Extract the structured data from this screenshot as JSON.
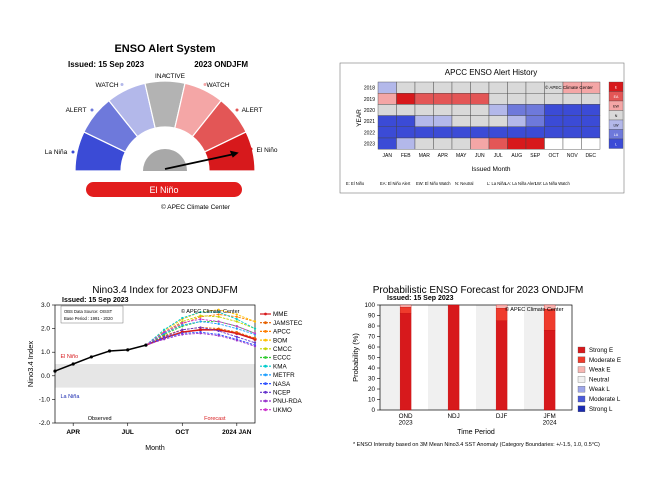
{
  "colors": {
    "strong_el_nino": "#d7191c",
    "el_nino_alert": "#e35656",
    "el_nino_watch": "#f4a6a6",
    "inactive": "#b3b3b3",
    "la_nina_watch": "#b3b8ea",
    "la_nina_alert": "#6e79db",
    "la_nina": "#3b4bd6",
    "neutral_cell": "#d9d9d9",
    "title_bar": "#e21d1d"
  },
  "panel1": {
    "title": "ENSO Alert System",
    "issued": "Issued: 15 Sep 2023",
    "period": "2023 ONDJFM",
    "labels": {
      "inactive": "INACTIVE",
      "watch_left": "WATCH",
      "watch_right": "WATCH",
      "alert_left": "ALERT",
      "alert_right": "ALERT",
      "la_nina": "La Niña",
      "el_nino": "El Niño"
    },
    "status": "El Niño",
    "credit": "© APEC Climate Center",
    "needle_state": "El Niño"
  },
  "panel2": {
    "title": "APCC ENSO Alert History",
    "ylabel": "YEAR",
    "xlabel": "Issued Month",
    "credit": "© APEC Climate Center",
    "legend_footer": [
      "E: El Niño",
      "EA: El Niño Alert",
      "EW: El Niño Watch",
      "N: Neutral",
      "L: La Niña",
      "LA: La Niña Alert",
      "LW: La Niña Watch"
    ]
  },
  "panel3": {
    "title": "Nino3.4 Index for 2023 ONDJFM",
    "issued": "Issued: 15 Sep 2023",
    "credit": "© APEC Climate Center",
    "info_line1": "OBS Data Source: OISST",
    "info_line2": "Base Period : 1991 - 2020",
    "el_nino_label": "El Niño",
    "la_nina_label": "La Niña",
    "observed_label": "Observed",
    "forecast_label": "Forecast"
  },
  "panel4": {
    "title": "Probabilistic ENSO Forecast for 2023 ONDJFM",
    "issued": "Issued: 15 Sep 2023",
    "credit": "© APEC Climate Center"
  },
  "footnote": "* ENSO Intensity based on 3M Mean Nino3.4 SST Anomaly (Category Boundaries: +/-1.5, 1.0, 0.5°C)",
  "chart_data": [
    {
      "type": "heatmap",
      "title": "APCC ENSO Alert History",
      "xlabel": "Issued Month",
      "ylabel": "YEAR",
      "x": [
        "JAN",
        "FEB",
        "MAR",
        "APR",
        "MAY",
        "JUN",
        "JUL",
        "AUG",
        "SEP",
        "OCT",
        "NOV",
        "DEC"
      ],
      "y": [
        "2018",
        "2019",
        "2020",
        "2021",
        "2022",
        "2023"
      ],
      "values": [
        [
          "LW",
          "N",
          "N",
          "N",
          "N",
          "N",
          "N",
          "N",
          "N",
          "N",
          "EW",
          "EW"
        ],
        [
          "EW",
          "E",
          "EA",
          "EA",
          "EA",
          "EA",
          "N",
          "N",
          "N",
          "N",
          "N",
          "N"
        ],
        [
          "N",
          "N",
          "N",
          "N",
          "N",
          "N",
          "LW",
          "LA",
          "LA",
          "L",
          "L",
          "L"
        ],
        [
          "L",
          "L",
          "LW",
          "LW",
          "N",
          "N",
          "N",
          "LW",
          "LA",
          "L",
          "L",
          "L"
        ],
        [
          "L",
          "L",
          "L",
          "L",
          "L",
          "L",
          "L",
          "L",
          "L",
          "L",
          "L",
          "L"
        ],
        [
          "L",
          "LW",
          "N",
          "N",
          "N",
          "EW",
          "EA",
          "E",
          "E",
          "",
          "",
          ""
        ]
      ],
      "legend": [
        "E",
        "EA",
        "EW",
        "N",
        "LW",
        "LA",
        "L"
      ]
    },
    {
      "type": "line",
      "title": "Nino3.4 Index for 2023 ONDJFM",
      "xlabel": "Month",
      "ylabel": "Nino3.4 Index",
      "ylim": [
        -2,
        3
      ],
      "yticks": [
        "-2.0",
        "-1.0",
        "0.0",
        "1.0",
        "2.0",
        "3.0"
      ],
      "x_ticks": [
        "APR",
        "JUL",
        "OCT",
        "2024 JAN"
      ],
      "x_tick_positions": [
        4,
        7,
        10,
        13
      ],
      "xlim": [
        3,
        14
      ],
      "observed": {
        "x": [
          3,
          4,
          5,
          6,
          7,
          8
        ],
        "values": [
          0.2,
          0.5,
          0.8,
          1.05,
          1.1,
          1.3
        ]
      },
      "forecast_x": [
        8,
        9,
        10,
        11,
        12,
        13,
        14
      ],
      "series": [
        {
          "name": "MME",
          "color": "#d7191c",
          "values": [
            1.3,
            1.6,
            1.85,
            1.95,
            1.95,
            1.8,
            1.55
          ]
        },
        {
          "name": "JAMSTEC",
          "color": "#e66101",
          "values": [
            1.3,
            1.7,
            1.95,
            2.05,
            2.0,
            1.85,
            1.6
          ]
        },
        {
          "name": "APCC",
          "color": "#ff7f00",
          "values": [
            1.3,
            1.8,
            2.2,
            2.5,
            2.6,
            2.5,
            2.3
          ]
        },
        {
          "name": "BOM",
          "color": "#ffc000",
          "values": [
            1.3,
            1.9,
            2.4,
            2.7,
            2.8,
            2.6,
            2.3
          ]
        },
        {
          "name": "CMCC",
          "color": "#c8d400",
          "values": [
            1.3,
            1.85,
            2.3,
            2.55,
            2.5,
            2.3,
            2.0
          ]
        },
        {
          "name": "ECCC",
          "color": "#33cc33",
          "values": [
            1.3,
            1.75,
            2.1,
            2.3,
            2.3,
            2.1,
            1.8
          ]
        },
        {
          "name": "KMA",
          "color": "#00cccc",
          "values": [
            1.3,
            1.95,
            2.45,
            2.7,
            2.7,
            2.4,
            2.0
          ]
        },
        {
          "name": "METFR",
          "color": "#1f9fff",
          "values": [
            1.3,
            1.8,
            2.15,
            2.3,
            2.2,
            2.0,
            1.75
          ]
        },
        {
          "name": "NASA",
          "color": "#3355ff",
          "values": [
            1.3,
            1.6,
            1.8,
            1.85,
            1.75,
            1.55,
            1.3
          ]
        },
        {
          "name": "NCEP",
          "color": "#6633cc",
          "values": [
            1.3,
            1.65,
            1.95,
            2.05,
            1.9,
            1.65,
            1.4
          ]
        },
        {
          "name": "PNU-RDA",
          "color": "#9933cc",
          "values": [
            1.3,
            1.55,
            1.75,
            1.8,
            1.7,
            1.5,
            1.25
          ]
        },
        {
          "name": "UKMO",
          "color": "#cc33cc",
          "values": [
            1.3,
            1.85,
            2.25,
            2.4,
            2.3,
            2.1,
            1.8
          ]
        }
      ],
      "el_nino_threshold": 0.5,
      "la_nina_threshold": -0.5
    },
    {
      "type": "bar",
      "title": "Probabilistic ENSO Forecast for 2023 ONDJFM",
      "xlabel": "Time Period",
      "ylabel": "Probability (%)",
      "ylim": [
        0,
        100
      ],
      "yticks": [
        "0",
        "10",
        "20",
        "30",
        "40",
        "50",
        "60",
        "70",
        "80",
        "90",
        "100"
      ],
      "categories": [
        "OND\n2023",
        "NDJ",
        "DJF",
        "JFM\n2024"
      ],
      "category_labels": [
        [
          "OND",
          "2023"
        ],
        [
          "NDJ"
        ],
        [
          "DJF"
        ],
        [
          "JFM",
          "2024"
        ]
      ],
      "series": [
        {
          "name": "Strong E",
          "color": "#d7191c",
          "values": [
            92,
            100,
            85,
            76
          ]
        },
        {
          "name": "Moderate E",
          "color": "#ef3b2c",
          "values": [
            6,
            0,
            12,
            20
          ]
        },
        {
          "name": "Weak E",
          "color": "#f7b6b2",
          "values": [
            2,
            0,
            3,
            4
          ]
        },
        {
          "name": "Neutral",
          "color": "#f0f0f0",
          "values": [
            0,
            0,
            0,
            0
          ]
        },
        {
          "name": "Weak L",
          "color": "#9ea7ea",
          "values": [
            0,
            0,
            0,
            0
          ]
        },
        {
          "name": "Moderate L",
          "color": "#4a5ad9",
          "values": [
            0,
            0,
            0,
            0
          ]
        },
        {
          "name": "Strong L",
          "color": "#1a2ab0",
          "values": [
            0,
            0,
            0,
            0
          ]
        }
      ]
    }
  ]
}
